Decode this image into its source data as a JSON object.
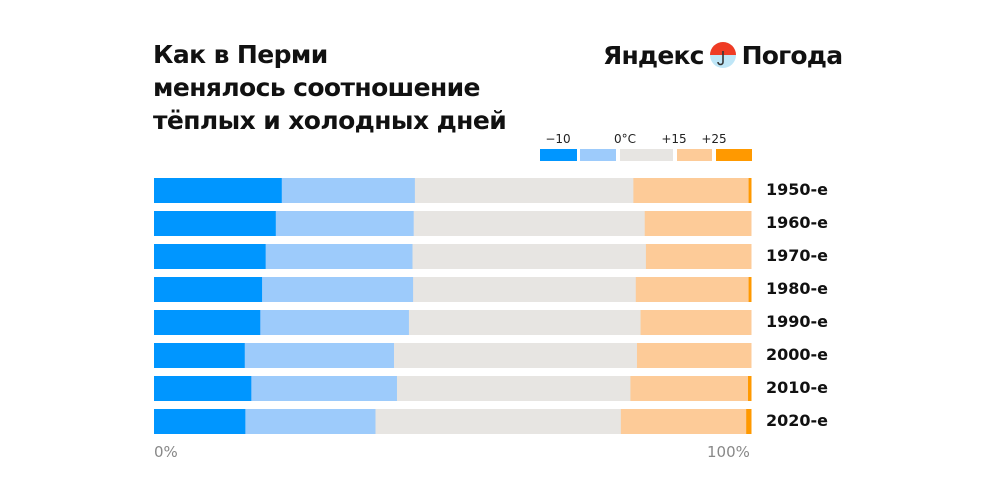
{
  "title_lines": [
    "Как в Перми",
    "менялось соотношение",
    "тёплых и холодных дней"
  ],
  "logo": {
    "left": "Яндекс",
    "right": "Погода",
    "icon": "umbrella-icon"
  },
  "chart_data": {
    "type": "bar",
    "orientation": "horizontal",
    "stacked": true,
    "normalized_percent": true,
    "categories": [
      "1950-е",
      "1960-е",
      "1970-е",
      "1980-е",
      "1990-е",
      "2000-е",
      "2010-е",
      "2020-е"
    ],
    "legend": {
      "thresholds": [
        "−10",
        "0°C",
        "+15",
        "+25"
      ],
      "placement": "top-right"
    },
    "series": [
      {
        "color": "#0096ff",
        "values": [
          21.4,
          20.4,
          18.7,
          18.1,
          17.8,
          15.2,
          16.3,
          15.3
        ]
      },
      {
        "color": "#9dcbfb",
        "values": [
          22.3,
          23.1,
          24.6,
          25.3,
          24.9,
          25.0,
          24.4,
          21.8
        ]
      },
      {
        "color": "#e7e5e2",
        "values": [
          36.6,
          38.7,
          39.1,
          37.3,
          38.8,
          40.7,
          39.1,
          41.1
        ]
      },
      {
        "color": "#fdcb98",
        "values": [
          19.3,
          17.8,
          17.6,
          18.9,
          18.5,
          19.1,
          19.7,
          21.0
        ]
      },
      {
        "color": "#ff9900",
        "values": [
          0.4,
          0,
          0,
          0.4,
          0,
          0,
          0.5,
          0.8
        ]
      }
    ],
    "xlim": [
      0,
      100
    ],
    "x_tick_labels": [
      "0%",
      "100%"
    ],
    "grid": false
  }
}
